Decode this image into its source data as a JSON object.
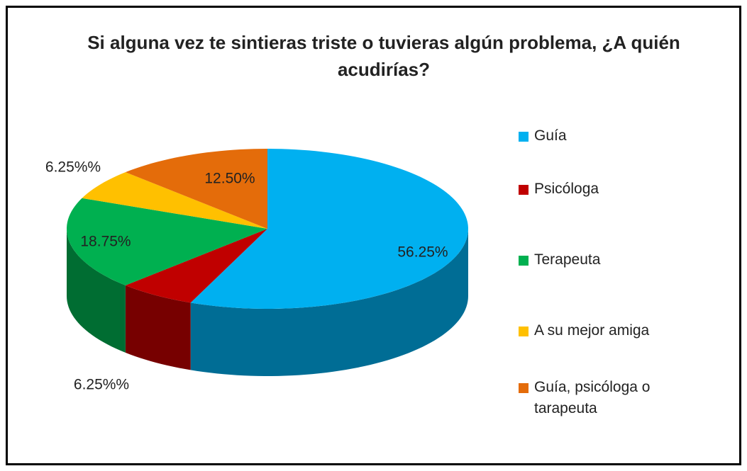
{
  "chart_data": {
    "type": "pie",
    "title": "Si alguna vez te sintieras triste o tuvieras algún problema, ¿A quién acudirías?",
    "categories": [
      "Guía",
      "Psicóloga",
      "Terapeuta",
      "A su mejor amiga",
      "Guía, psicóloga o tarapeuta"
    ],
    "values": [
      56.25,
      6.25,
      18.75,
      6.25,
      12.5
    ],
    "value_labels": [
      "56.25%",
      "6.25%%",
      "18.75%",
      "6.25%%",
      "12.50%"
    ],
    "colors": [
      "#00b0f0",
      "#c00000",
      "#00b050",
      "#ffc000",
      "#e46c0a"
    ],
    "legend": "right"
  }
}
